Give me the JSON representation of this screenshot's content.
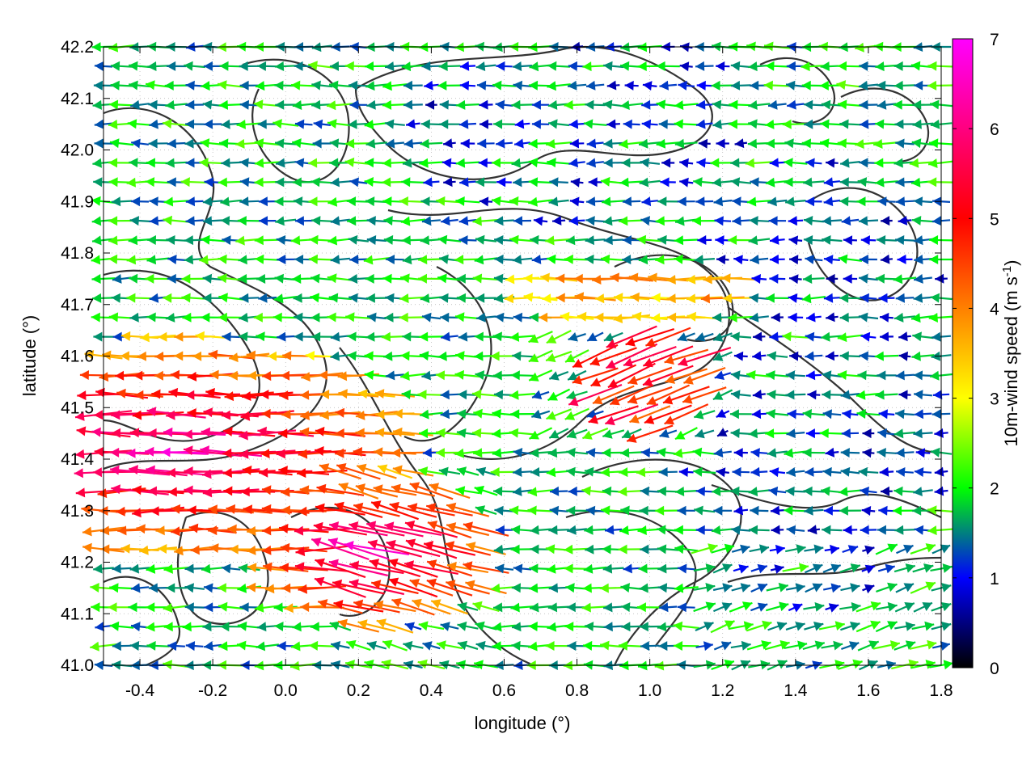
{
  "chart_data": {
    "type": "vector-field",
    "xlabel": "longitude (°)",
    "ylabel": "latitude (°)",
    "xlim": [
      -0.5,
      1.8
    ],
    "ylim": [
      41.0,
      42.2
    ],
    "x_ticks": [
      "-0.4",
      "-0.2",
      "0.0",
      "0.2",
      "0.4",
      "0.6",
      "0.8",
      "1.0",
      "1.2",
      "1.4",
      "1.6",
      "1.8"
    ],
    "y_ticks": [
      "41.0",
      "41.1",
      "41.2",
      "41.3",
      "41.4",
      "41.5",
      "41.6",
      "41.7",
      "41.8",
      "41.9",
      "42.0",
      "42.1",
      "42.2"
    ],
    "grid": true,
    "colorbar": {
      "label": "10m-wind speed (m s-1)",
      "range": [
        0,
        7
      ],
      "ticks": [
        "0",
        "1",
        "2",
        "3",
        "4",
        "5",
        "6",
        "7"
      ],
      "colors": [
        "#000000",
        "#0000ff",
        "#00ff00",
        "#ffff00",
        "#ff8000",
        "#ff0000",
        "#ff00ff"
      ]
    },
    "wind_field_summary": "Predominantly easterly winds (vectors pointing west); strongest 4-7 m/s in the south-west sector near 41.2-41.6 N, -0.5 to 0.5 E; weak 0-2 m/s flow over the north-east; south-westerly 2-3 m/s flow in the south-east corner.",
    "contours": "terrain elevation contour lines (dark grey)"
  }
}
